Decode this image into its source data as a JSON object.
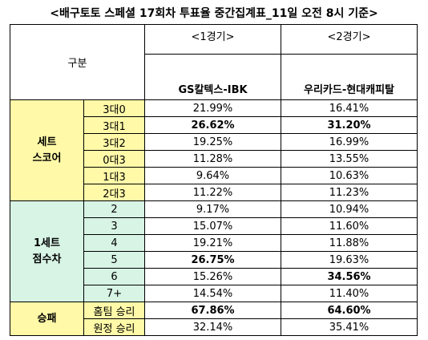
{
  "title": "<배구토토 스페셜 17회차 투표율 중간집계표_11일 오전 8시 기준>",
  "header": {
    "gubun": "구분",
    "game1_label": "<1경기>",
    "game2_label": "<2경기>",
    "game1_teams": "GS칼텍스-IBK",
    "game2_teams": "우리카드-현대캐피탈"
  },
  "sections": [
    {
      "label_line1": "세트",
      "label_line2": "스코어",
      "rows": [
        {
          "label": "3대0",
          "g1": "21.99%",
          "g2": "16.41%",
          "b1": false,
          "b2": false
        },
        {
          "label": "3대1",
          "g1": "26.62%",
          "g2": "31.20%",
          "b1": true,
          "b2": true
        },
        {
          "label": "3대2",
          "g1": "19.25%",
          "g2": "16.99%",
          "b1": false,
          "b2": false
        },
        {
          "label": "0대3",
          "g1": "11.28%",
          "g2": "13.55%",
          "b1": false,
          "b2": false
        },
        {
          "label": "1대3",
          "g1": "9.64%",
          "g2": "10.63%",
          "b1": false,
          "b2": false
        },
        {
          "label": "2대3",
          "g1": "11.22%",
          "g2": "11.23%",
          "b1": false,
          "b2": false
        }
      ]
    },
    {
      "label_line1": "1세트",
      "label_line2": "점수차",
      "rows": [
        {
          "label": "2",
          "g1": "9.17%",
          "g2": "10.94%",
          "b1": false,
          "b2": false
        },
        {
          "label": "3",
          "g1": "15.07%",
          "g2": "11.60%",
          "b1": false,
          "b2": false
        },
        {
          "label": "4",
          "g1": "19.21%",
          "g2": "11.88%",
          "b1": false,
          "b2": false
        },
        {
          "label": "5",
          "g1": "26.75%",
          "g2": "19.63%",
          "b1": true,
          "b2": false
        },
        {
          "label": "6",
          "g1": "15.26%",
          "g2": "34.56%",
          "b1": false,
          "b2": true
        },
        {
          "label": "7+",
          "g1": "14.54%",
          "g2": "11.40%",
          "b1": false,
          "b2": false
        }
      ]
    },
    {
      "label_line1": "승패",
      "label_line2": "",
      "rows": [
        {
          "label": "홈팀 승리",
          "g1": "67.86%",
          "g2": "64.60%",
          "b1": true,
          "b2": true
        },
        {
          "label": "원정 승리",
          "g1": "32.14%",
          "g2": "35.41%",
          "b1": false,
          "b2": false
        }
      ]
    }
  ],
  "colors": {
    "yellow": "#fff9a8",
    "green": "#d7f4e5"
  }
}
